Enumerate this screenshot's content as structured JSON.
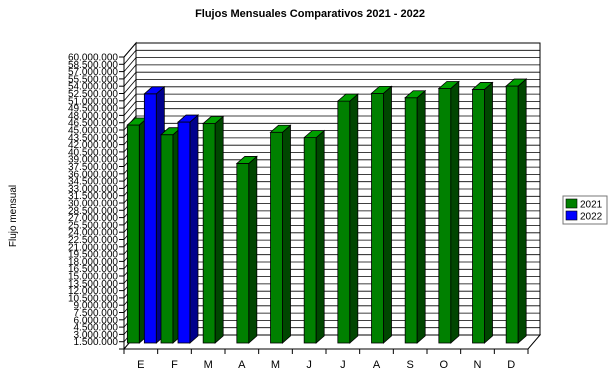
{
  "chart_data": {
    "type": "bar",
    "title": "Flujos Mensuales Comparativos 2021 - 2022",
    "xlabel": "",
    "ylabel": "Flujo mensual",
    "categories": [
      "E",
      "F",
      "M",
      "A",
      "M",
      "J",
      "J",
      "A",
      "S",
      "O",
      "N",
      "D"
    ],
    "series": [
      {
        "name": "2021",
        "color": "#008000",
        "values": [
          44800000,
          42800000,
          45100000,
          36900000,
          43300000,
          42200000,
          49700000,
          51300000,
          50400000,
          52300000,
          52100000,
          52800000
        ]
      },
      {
        "name": "2022",
        "color": "#0000ff",
        "values": [
          51200000,
          45400000,
          null,
          null,
          null,
          null,
          null,
          null,
          null,
          null,
          null,
          null
        ]
      }
    ],
    "ylim": [
      0,
      60000000
    ],
    "y_ticks": [
      "1.500.000",
      "3.000.000",
      "4.500.000",
      "6.000.000",
      "7.500.000",
      "9.000.000",
      "10.500.000",
      "12.000.000",
      "13.500.000",
      "15.000.000",
      "16.500.000",
      "18.000.000",
      "19.500.000",
      "21.000.000",
      "22.500.000",
      "24.000.000",
      "25.500.000",
      "27.000.000",
      "28.500.000",
      "30.000.000",
      "31.500.000",
      "33.000.000",
      "34.500.000",
      "36.000.000",
      "37.500.000",
      "39.000.000",
      "40.500.000",
      "42.000.000",
      "43.500.000",
      "45.000.000",
      "46.500.000",
      "48.000.000",
      "49.500.000",
      "51.000.000",
      "52.500.000",
      "54.000.000",
      "55.500.000",
      "57.000.000",
      "58.500.000",
      "60.000.000"
    ],
    "grid": true,
    "legend_position": "right"
  }
}
